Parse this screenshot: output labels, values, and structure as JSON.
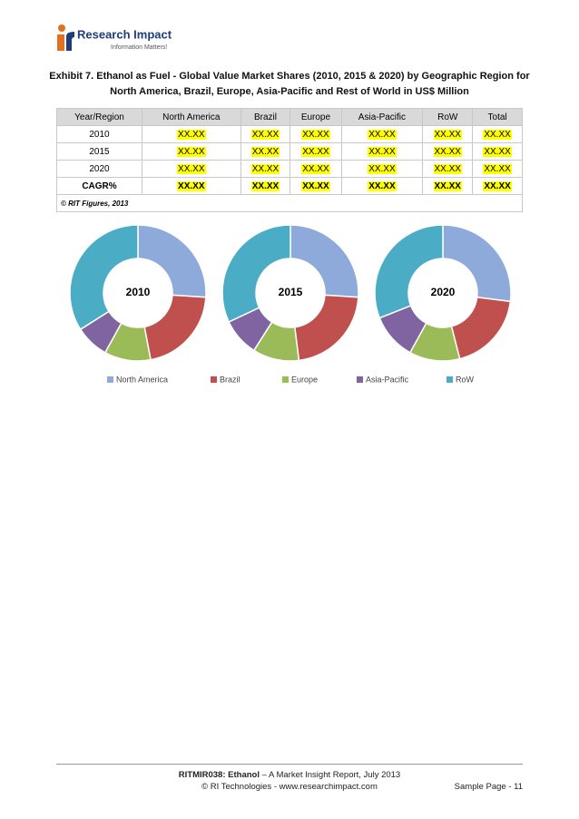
{
  "header": {
    "brand": "Research Impact",
    "tagline": "Information Matters!"
  },
  "exhibit": {
    "title_line1": "Exhibit 7. Ethanol as Fuel - Global Value Market Shares (2010, 2015 & 2020) by Geographic Region for",
    "title_line2": "North America, Brazil, Europe, Asia-Pacific and Rest of World in US$ Million"
  },
  "table": {
    "columns": [
      "Year/Region",
      "North America",
      "Brazil",
      "Europe",
      "Asia-Pacific",
      "RoW",
      "Total"
    ],
    "rows": [
      [
        "2010",
        "XX.XX",
        "XX.XX",
        "XX.XX",
        "XX.XX",
        "XX.XX",
        "XX.XX"
      ],
      [
        "2015",
        "XX.XX",
        "XX.XX",
        "XX.XX",
        "XX.XX",
        "XX.XX",
        "XX.XX"
      ],
      [
        "2020",
        "XX.XX",
        "XX.XX",
        "XX.XX",
        "XX.XX",
        "XX.XX",
        "XX.XX"
      ],
      [
        "CAGR%",
        "XX.XX",
        "XX.XX",
        "XX.XX",
        "XX.XX",
        "XX.XX",
        "XX.XX"
      ]
    ],
    "source": "© RIT Figures, 2013"
  },
  "chart_data": [
    {
      "type": "donut",
      "title": "2010",
      "categories": [
        "North America",
        "Brazil",
        "Europe",
        "Asia-Pacific",
        "RoW"
      ],
      "values": [
        26,
        21,
        11,
        8,
        34
      ],
      "colors": [
        "#8eaadb",
        "#c0504d",
        "#9bbb59",
        "#8064a2",
        "#4bacc6"
      ]
    },
    {
      "type": "donut",
      "title": "2015",
      "categories": [
        "North America",
        "Brazil",
        "Europe",
        "Asia-Pacific",
        "RoW"
      ],
      "values": [
        26,
        22,
        11,
        9,
        32
      ],
      "colors": [
        "#8eaadb",
        "#c0504d",
        "#9bbb59",
        "#8064a2",
        "#4bacc6"
      ]
    },
    {
      "type": "donut",
      "title": "2020",
      "categories": [
        "North America",
        "Brazil",
        "Europe",
        "Asia-Pacific",
        "RoW"
      ],
      "values": [
        27,
        19,
        12,
        11,
        31
      ],
      "colors": [
        "#8eaadb",
        "#c0504d",
        "#9bbb59",
        "#8064a2",
        "#4bacc6"
      ]
    }
  ],
  "footer": {
    "report_code": "RITMIR038: Ethanol",
    "report_rest": " – A Market Insight Report, July 2013",
    "copyright": "© RI Technologies - www.researchimpact.com",
    "page": "Sample Page - 11"
  }
}
